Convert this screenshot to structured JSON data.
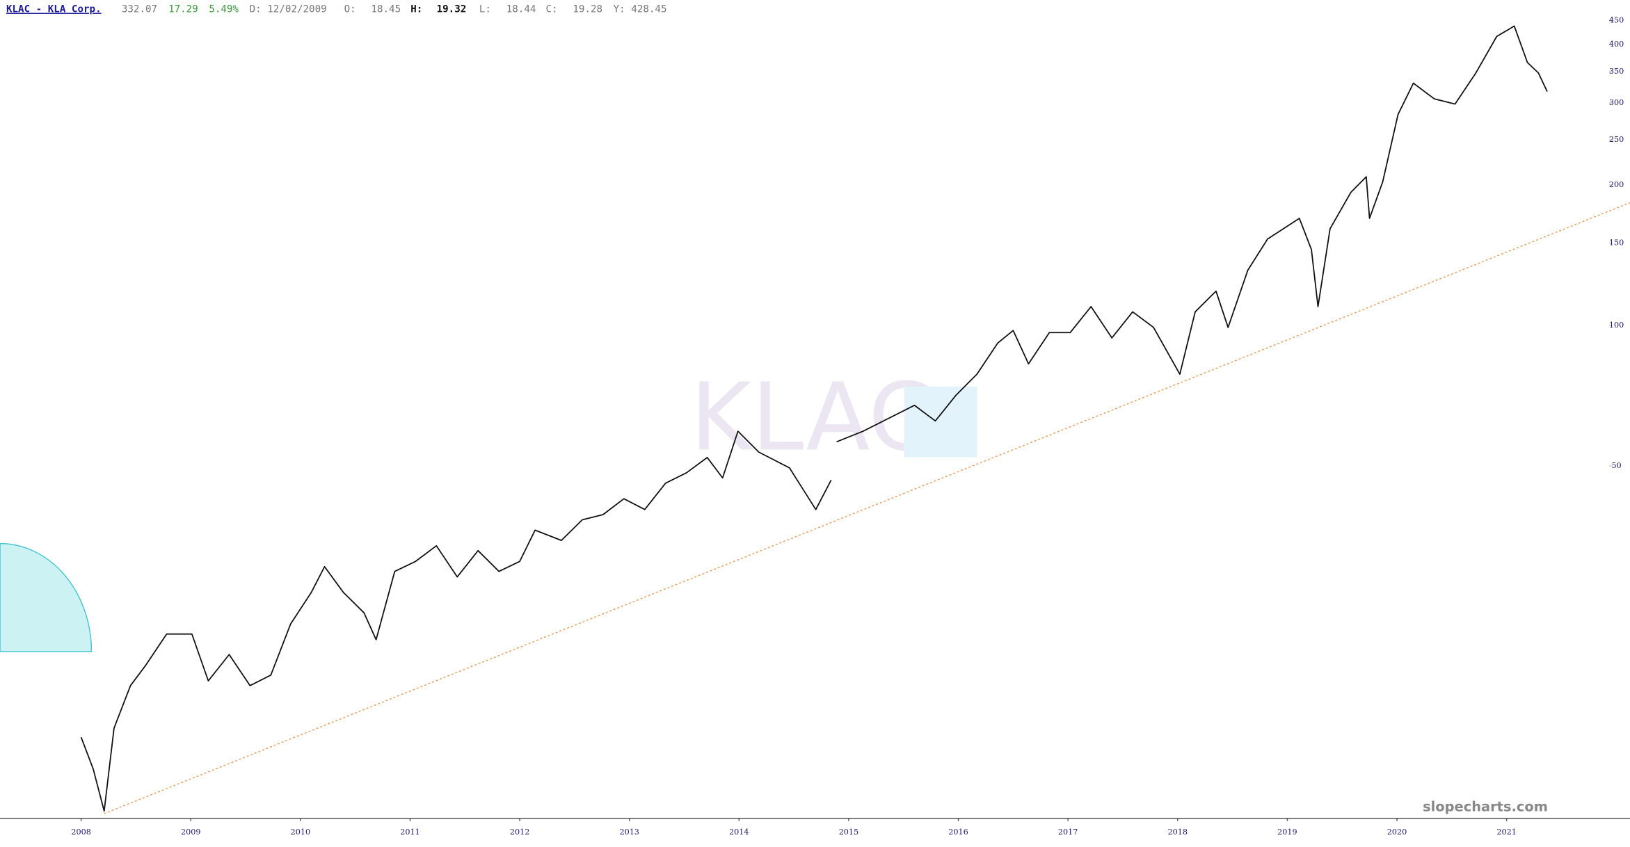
{
  "header": {
    "symbol": "KLAC - KLA Corp.",
    "last": "332.07",
    "change": "17.29",
    "change_pct": "5.49%",
    "date": "D: 12/02/2009",
    "open_label": "O:",
    "open": "18.45",
    "high_label": "H:",
    "high": "19.32",
    "low_label": "L:",
    "low": "18.44",
    "close_label": "C:",
    "close": "19.28",
    "year_high": "Y: 428.45"
  },
  "chart_data": {
    "type": "line",
    "watermark": "KLAC",
    "source": "slopecharts.com",
    "color": "#111111",
    "log_scale": true,
    "x": [
      2008.0,
      2008.11,
      2008.21,
      2008.3,
      2008.45,
      2008.59,
      2008.78,
      2009.01,
      2009.16,
      2009.35,
      2009.54,
      2009.73,
      2009.91,
      2010.1,
      2010.22,
      2010.39,
      2010.58,
      2010.69,
      2010.86,
      2011.05,
      2011.24,
      2011.43,
      2011.62,
      2011.81,
      2012.0,
      2012.14,
      2012.38,
      2012.57,
      2012.76,
      2012.95,
      2013.14,
      2013.33,
      2013.52,
      2013.71,
      2013.85,
      2013.99,
      2014.18,
      2014.46,
      2014.7,
      2014.84,
      2014.86,
      2014.89,
      2015.13,
      2015.41,
      2015.6,
      2015.79,
      2015.98,
      2016.17,
      2016.36,
      2016.5,
      2016.64,
      2016.83,
      2017.02,
      2017.21,
      2017.4,
      2017.59,
      2017.78,
      2018.02,
      2018.16,
      2018.35,
      2018.46,
      2018.64,
      2018.82,
      2019.11,
      2019.22,
      2019.28,
      2019.39,
      2019.58,
      2019.72,
      2019.75,
      2019.87,
      2020.01,
      2020.15,
      2020.34,
      2020.53,
      2020.72,
      2020.91,
      2021.07,
      2021.19,
      2021.29,
      2021.37
    ],
    "values": [
      13.1,
      11.2,
      9.1,
      13.7,
      16.9,
      18.7,
      21.8,
      21.8,
      17.3,
      19.7,
      16.9,
      17.8,
      22.9,
      26.8,
      30.4,
      26.8,
      24.2,
      21.2,
      29.7,
      31.2,
      33.7,
      28.9,
      32.9,
      29.7,
      31.2,
      36.4,
      34.6,
      38.3,
      39.3,
      42.5,
      40.3,
      45.9,
      48.3,
      52.1,
      47.1,
      59.3,
      53.5,
      49.5,
      40.3,
      46.6,
      null,
      56.3,
      59.3,
      64.0,
      67.4,
      62.4,
      70.9,
      78.6,
      91.7,
      97.5,
      82.7,
      96.5,
      96.5,
      109.7,
      94.0,
      106.9,
      99.0,
      78.6,
      106.9,
      118.4,
      99.0,
      131.3,
      153.1,
      169.6,
      145.4,
      109.7,
      161.1,
      192.8,
      208.2,
      169.6,
      203.0,
      283.2,
      330.4,
      305.9,
      298.1,
      347.6,
      416.2,
      438.0,
      365.9,
      347.6,
      317.1
    ],
    "xlim": [
      2007.26,
      2021.86
    ],
    "xticks": [
      2008,
      2009,
      2010,
      2011,
      2012,
      2013,
      2014,
      2015,
      2016,
      2017,
      2018,
      2019,
      2020,
      2021
    ],
    "ylim": [
      8.8,
      498
    ],
    "yticks": [
      50,
      100,
      150,
      200,
      250,
      300,
      350,
      400,
      450
    ]
  }
}
